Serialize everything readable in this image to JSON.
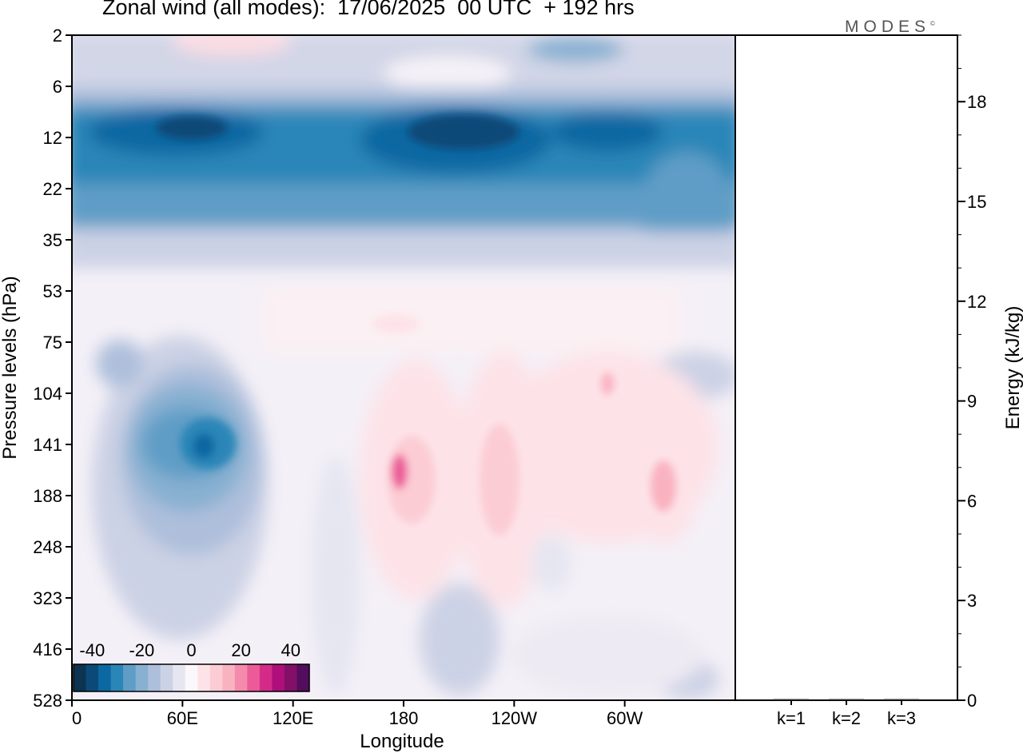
{
  "header": {
    "title": "Zonal wind (all modes):  17/06/2025  00 UTC  + 192 hrs",
    "brand": "MODES"
  },
  "chart_data": [
    {
      "type": "heatmap",
      "title": "Zonal wind (all modes):  17/06/2025  00 UTC  + 192 hrs",
      "xlabel": "Longitude",
      "ylabel": "Pressure levels (hPa)",
      "x_ticks": [
        "0",
        "60E",
        "120E",
        "180",
        "120W",
        "60W"
      ],
      "y_ticks": [
        "2",
        "6",
        "12",
        "22",
        "35",
        "53",
        "75",
        "104",
        "141",
        "188",
        "248",
        "323",
        "416",
        "528"
      ],
      "colorbar": {
        "tick_labels": [
          "-40",
          "-20",
          "0",
          "20",
          "40"
        ],
        "levels": [
          -45,
          -40,
          -35,
          -30,
          -25,
          -20,
          -15,
          -10,
          -5,
          0,
          5,
          10,
          15,
          20,
          25,
          30,
          35,
          40,
          45
        ],
        "colors": [
          "#0c3351",
          "#0b4a78",
          "#0b68a2",
          "#2b86b8",
          "#5f9dc6",
          "#88b0d1",
          "#aebfdb",
          "#ccd2e5",
          "#e5e6f1",
          "#fbf7fb",
          "#fde3e8",
          "#fcccd4",
          "#f9b2c0",
          "#f48aac",
          "#ec5a98",
          "#d42b89",
          "#ae0f7a",
          "#821068",
          "#520d5c"
        ]
      },
      "features": [
        {
          "name": "stratospheric easterly jet",
          "x": [
            0,
            360
          ],
          "y_hPa": [
            10,
            30
          ],
          "u": -30
        },
        {
          "name": "upper stratosphere weak easterlies",
          "x": [
            0,
            360
          ],
          "y_hPa": [
            2,
            8
          ],
          "u": -10
        },
        {
          "name": "easterly core over 60E-100E",
          "x": [
            30,
            100
          ],
          "y_hPa": [
            104,
            250
          ],
          "u": -25
        },
        {
          "name": "westerly maximum near 170E",
          "x": [
            165,
            205
          ],
          "y_hPa": [
            120,
            230
          ],
          "u": 15
        },
        {
          "name": "westerly maximum near 120W",
          "x": [
            215,
            255
          ],
          "y_hPa": [
            110,
            300
          ],
          "u": 10
        },
        {
          "name": "westerly maximum near 40W",
          "x": [
            300,
            340
          ],
          "y_hPa": [
            140,
            250
          ],
          "u": 10
        }
      ]
    },
    {
      "type": "bar",
      "ylabel": "Energy (kJ/kg)",
      "categories": [
        "k=1",
        "k=2",
        "k=3"
      ],
      "values": [
        0.02,
        0.01,
        0.01
      ],
      "ylim": [
        0,
        20
      ],
      "y_ticks": [
        "0",
        "3",
        "6",
        "9",
        "12",
        "15",
        "18"
      ]
    }
  ]
}
